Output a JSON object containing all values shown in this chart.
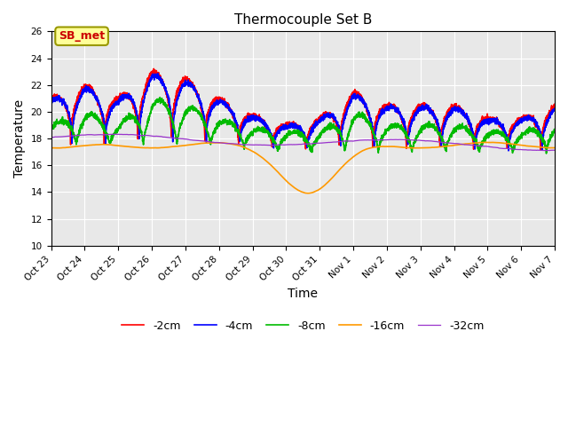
{
  "title": "Thermocouple Set B",
  "xlabel": "Time",
  "ylabel": "Temperature",
  "ylim": [
    10,
    26
  ],
  "yticks": [
    10,
    12,
    14,
    16,
    18,
    20,
    22,
    24,
    26
  ],
  "xtick_labels": [
    "Oct 23",
    "Oct 24",
    "Oct 25",
    "Oct 26",
    "Oct 27",
    "Oct 28",
    "Oct 29",
    "Oct 30",
    "Oct 31",
    "Nov 1",
    "Nov 2",
    "Nov 3",
    "Nov 4",
    "Nov 5",
    "Nov 6",
    "Nov 7"
  ],
  "annotation_text": "SB_met",
  "annotation_color": "#cc0000",
  "annotation_bg": "#ffff99",
  "annotation_border": "#999900",
  "bg_color": "#e8e8e8",
  "fig_bg": "#ffffff",
  "line_colors": [
    "#ff0000",
    "#0000ff",
    "#00bb00",
    "#ff9900",
    "#9933cc"
  ],
  "line_labels": [
    "-2cm",
    "-4cm",
    "-8cm",
    "-16cm",
    "-32cm"
  ],
  "line_widths": [
    1.2,
    1.2,
    1.2,
    1.2,
    0.9
  ],
  "title_fontsize": 11,
  "tick_fontsize": 7.5,
  "label_fontsize": 10,
  "legend_fontsize": 9
}
